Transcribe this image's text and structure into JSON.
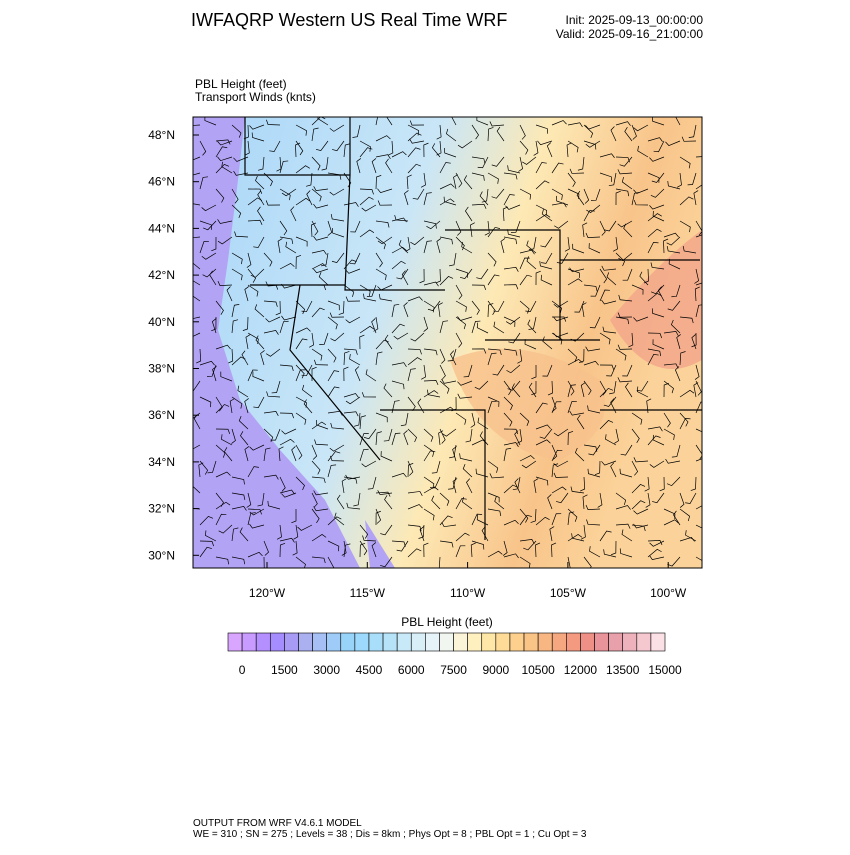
{
  "header": {
    "title": "IWFAQRP Western US Real Time WRF",
    "init": "Init: 2025-09-13_00:00:00",
    "valid": "Valid: 2025-09-16_21:00:00"
  },
  "fields": [
    "PBL Height   (feet)",
    "Transport Winds   (knts)"
  ],
  "map": {
    "lat_labels": [
      "48°N",
      "46°N",
      "44°N",
      "42°N",
      "40°N",
      "38°N",
      "36°N",
      "34°N",
      "32°N",
      "30°N"
    ],
    "lon_labels": [
      "120°W",
      "115°W",
      "110°W",
      "105°W",
      "100°W"
    ]
  },
  "colorbar": {
    "title": "PBL Height  (feet)",
    "ticks": [
      "0",
      "1500",
      "3000",
      "4500",
      "6000",
      "7500",
      "9000",
      "10500",
      "12000",
      "13500",
      "15000"
    ],
    "colors": [
      "#d9a6ff",
      "#c79bff",
      "#b48fff",
      "#a58cff",
      "#a89bf5",
      "#aab0f0",
      "#a6c0f5",
      "#9ecbf7",
      "#98d3fa",
      "#9dd9fc",
      "#a8defa",
      "#b7e3f8",
      "#c8e9f7",
      "#d8eff8",
      "#e6f3f8",
      "#f2f6f0",
      "#fbf4d8",
      "#fff0c0",
      "#ffe7a8",
      "#ffdb98",
      "#fdd08e",
      "#fbc487",
      "#f8b682",
      "#f5a780",
      "#f39a80",
      "#ef9086",
      "#e9949a",
      "#e8a0aa",
      "#eeb2bd",
      "#f5c8d0",
      "#fbe0e6"
    ]
  },
  "footer": {
    "line1": "OUTPUT FROM WRF V4.6.1 MODEL",
    "line2": "WE = 310 ; SN = 275 ; Levels = 38 ; Dis = 8km ; Phys Opt = 8 ; PBL Opt = 1 ; Cu Opt = 3"
  }
}
